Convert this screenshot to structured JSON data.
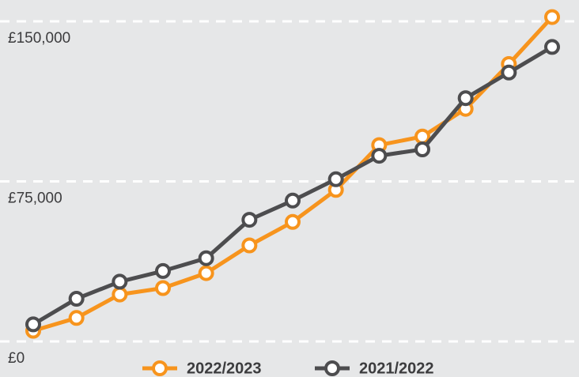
{
  "chart_data": {
    "type": "line",
    "categories": [
      null,
      null,
      null,
      null,
      null,
      null,
      null,
      null,
      null,
      null,
      null,
      null,
      null
    ],
    "series": [
      {
        "name": "2022/2023",
        "color": "#f7941d",
        "values": [
          5000,
          11000,
          22000,
          25000,
          32000,
          45000,
          56000,
          71000,
          92000,
          96000,
          109000,
          130000,
          152000
        ]
      },
      {
        "name": "2021/2022",
        "color": "#4d4d4f",
        "values": [
          8000,
          20000,
          28000,
          33000,
          39000,
          57000,
          66000,
          76000,
          87000,
          90000,
          114000,
          126000,
          138000
        ]
      }
    ],
    "ylim": [
      0,
      160000
    ],
    "yticks": [
      {
        "value": 0,
        "label": "£0"
      },
      {
        "value": 75000,
        "label": "£75,000"
      },
      {
        "value": 150000,
        "label": "£150,000"
      }
    ],
    "grid": true,
    "legend": "bottom"
  }
}
